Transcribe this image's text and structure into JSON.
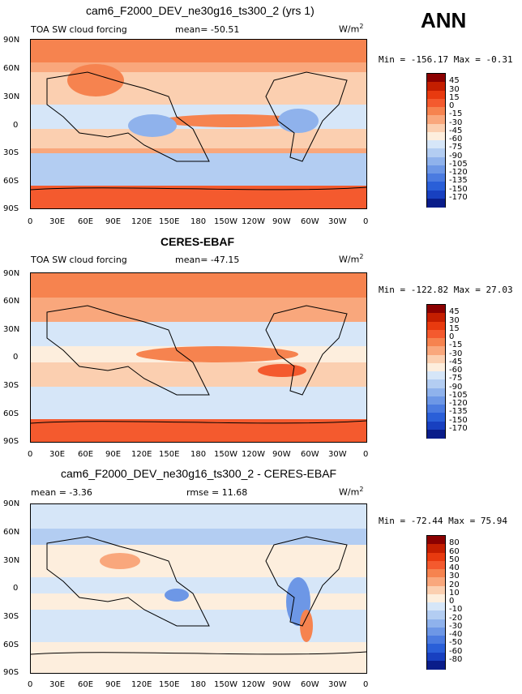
{
  "ann_label": "ANN",
  "panels": [
    {
      "title": "cam6_F2000_DEV_ne30g16_ts300_2 (yrs 1)",
      "left_label": "TOA SW cloud forcing",
      "stat_label": "mean=  -50.51",
      "stat2_label": "",
      "units": "W/m",
      "units_sup": "2",
      "minmax": "Min = -156.17 Max =   -0.31",
      "colorbar": {
        "levels": [
          "45",
          "30",
          "15",
          "0",
          "-15",
          "-30",
          "-45",
          "-60",
          "-75",
          "-90",
          "-105",
          "-120",
          "-135",
          "-150",
          "-170"
        ],
        "colors": [
          "#8b0000",
          "#c41e00",
          "#e83a0f",
          "#f45a2e",
          "#f6834f",
          "#f9a77c",
          "#fbcfb0",
          "#fdeedd",
          "#d6e6f8",
          "#b3cdf2",
          "#8fb2ec",
          "#6d97e6",
          "#4b7be0",
          "#2a5fd8",
          "#1840c0",
          "#0a1d8a"
        ]
      }
    },
    {
      "title": "CERES-EBAF",
      "left_label": "TOA SW cloud forcing",
      "stat_label": "mean=  -47.15",
      "stat2_label": "",
      "units": "W/m",
      "units_sup": "2",
      "minmax": "Min = -122.82 Max =  27.03",
      "colorbar": {
        "levels": [
          "45",
          "30",
          "15",
          "0",
          "-15",
          "-30",
          "-45",
          "-60",
          "-75",
          "-90",
          "-105",
          "-120",
          "-135",
          "-150",
          "-170"
        ],
        "colors": [
          "#8b0000",
          "#c41e00",
          "#e83a0f",
          "#f45a2e",
          "#f6834f",
          "#f9a77c",
          "#fbcfb0",
          "#fdeedd",
          "#d6e6f8",
          "#b3cdf2",
          "#8fb2ec",
          "#6d97e6",
          "#4b7be0",
          "#2a5fd8",
          "#1840c0",
          "#0a1d8a"
        ]
      }
    },
    {
      "title": "cam6_F2000_DEV_ne30g16_ts300_2 - CERES-EBAF",
      "left_label": "mean =  -3.36",
      "stat_label": "",
      "stat2_label": "rmse =  11.68",
      "units": "W/m",
      "units_sup": "2",
      "minmax": "Min = -72.44 Max =  75.94",
      "colorbar": {
        "levels": [
          "80",
          "60",
          "50",
          "40",
          "30",
          "20",
          "10",
          "0",
          "-10",
          "-20",
          "-30",
          "-40",
          "-50",
          "-60",
          "-80"
        ],
        "colors": [
          "#8b0000",
          "#c41e00",
          "#e83a0f",
          "#f45a2e",
          "#f6834f",
          "#f9a77c",
          "#fbcfb0",
          "#fdeedd",
          "#d6e6f8",
          "#b3cdf2",
          "#8fb2ec",
          "#6d97e6",
          "#4b7be0",
          "#2a5fd8",
          "#1840c0",
          "#0a1d8a"
        ]
      }
    }
  ],
  "axes": {
    "lat_ticks": [
      "90N",
      "60N",
      "30N",
      "0",
      "30S",
      "60S",
      "90S"
    ],
    "lon_ticks": [
      "0",
      "30E",
      "60E",
      "90E",
      "120E",
      "150E",
      "180",
      "150W",
      "120W",
      "90W",
      "60W",
      "30W",
      "0"
    ]
  },
  "chart_data": [
    {
      "type": "heatmap",
      "title": "cam6_F2000_DEV_ne30g16_ts300_2 (yrs 1)",
      "variable": "TOA SW cloud forcing",
      "units": "W/m2",
      "mean": -50.51,
      "min": -156.17,
      "max": -0.31,
      "levels": [
        45,
        30,
        15,
        0,
        -15,
        -30,
        -45,
        -60,
        -75,
        -90,
        -105,
        -120,
        -135,
        -150,
        -170
      ],
      "x_range": [
        0,
        360
      ],
      "y_range": [
        -90,
        90
      ]
    },
    {
      "type": "heatmap",
      "title": "CERES-EBAF",
      "variable": "TOA SW cloud forcing",
      "units": "W/m2",
      "mean": -47.15,
      "min": -122.82,
      "max": 27.03,
      "levels": [
        45,
        30,
        15,
        0,
        -15,
        -30,
        -45,
        -60,
        -75,
        -90,
        -105,
        -120,
        -135,
        -150,
        -170
      ],
      "x_range": [
        0,
        360
      ],
      "y_range": [
        -90,
        90
      ]
    },
    {
      "type": "heatmap",
      "title": "cam6_F2000_DEV_ne30g16_ts300_2 - CERES-EBAF",
      "units": "W/m2",
      "mean": -3.36,
      "rmse": 11.68,
      "min": -72.44,
      "max": 75.94,
      "levels": [
        80,
        60,
        50,
        40,
        30,
        20,
        10,
        0,
        -10,
        -20,
        -30,
        -40,
        -50,
        -60,
        -80
      ],
      "x_range": [
        0,
        360
      ],
      "y_range": [
        -90,
        90
      ]
    }
  ]
}
